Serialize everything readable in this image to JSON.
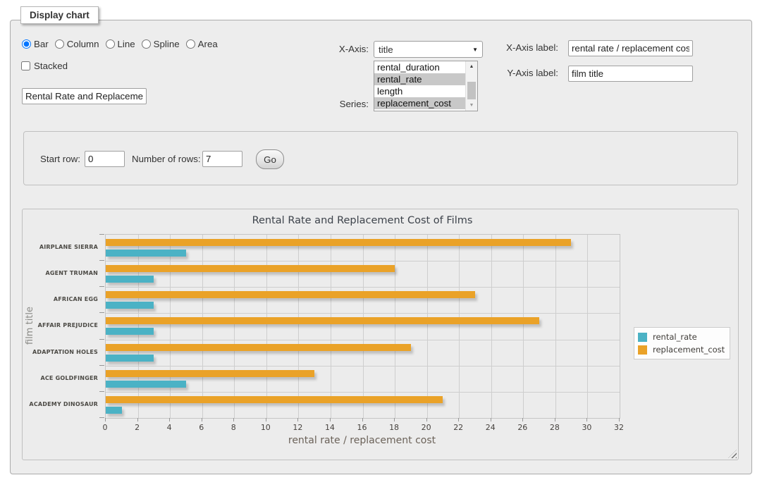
{
  "panel": {
    "legend": "Display chart"
  },
  "chart_type_options": [
    {
      "label": "Bar",
      "selected": true
    },
    {
      "label": "Column",
      "selected": false
    },
    {
      "label": "Line",
      "selected": false
    },
    {
      "label": "Spline",
      "selected": false
    },
    {
      "label": "Area",
      "selected": false
    }
  ],
  "stacked": {
    "label": "Stacked",
    "checked": false
  },
  "title_input": {
    "value": "Rental Rate and Replacement Cost of Films"
  },
  "x_axis": {
    "label": "X-Axis:",
    "value": "title"
  },
  "series_select": {
    "label": "Series:",
    "options": [
      {
        "label": "rental_duration",
        "selected": false
      },
      {
        "label": "rental_rate",
        "selected": true
      },
      {
        "label": "length",
        "selected": false
      },
      {
        "label": "replacement_cost",
        "selected": true
      }
    ]
  },
  "x_axis_label_field": {
    "label": "X-Axis label:",
    "value": "rental rate / replacement cost"
  },
  "y_axis_label_field": {
    "label": "Y-Axis label:",
    "value": "film title"
  },
  "row_controls": {
    "start_row_label": "Start row:",
    "start_row_value": "0",
    "num_rows_label": "Number of rows:",
    "num_rows_value": "7",
    "go_label": "Go"
  },
  "icons": {
    "select_arrow": "▼",
    "scroll_up": "▲",
    "scroll_down": "▼"
  },
  "chart_data": {
    "type": "bar",
    "orientation": "horizontal",
    "title": "Rental Rate and Replacement Cost of Films",
    "xlabel": "rental rate / replacement cost",
    "ylabel": "film title",
    "categories": [
      "AIRPLANE SIERRA",
      "AGENT TRUMAN",
      "AFRICAN EGG",
      "AFFAIR PREJUDICE",
      "ADAPTATION HOLES",
      "ACE GOLDFINGER",
      "ACADEMY DINOSAUR"
    ],
    "series": [
      {
        "name": "rental_rate",
        "color": "#4bb2c5",
        "values": [
          4.99,
          2.99,
          2.99,
          2.99,
          2.99,
          4.99,
          0.99
        ]
      },
      {
        "name": "replacement_cost",
        "color": "#EAA228",
        "values": [
          28.99,
          17.99,
          22.99,
          26.99,
          18.99,
          12.99,
          20.99
        ]
      }
    ],
    "draw_order": [
      "replacement_cost",
      "rental_rate"
    ],
    "xlim": [
      0,
      32
    ],
    "xtick_step": 2,
    "grid": true,
    "legend_position": "outside-right"
  }
}
